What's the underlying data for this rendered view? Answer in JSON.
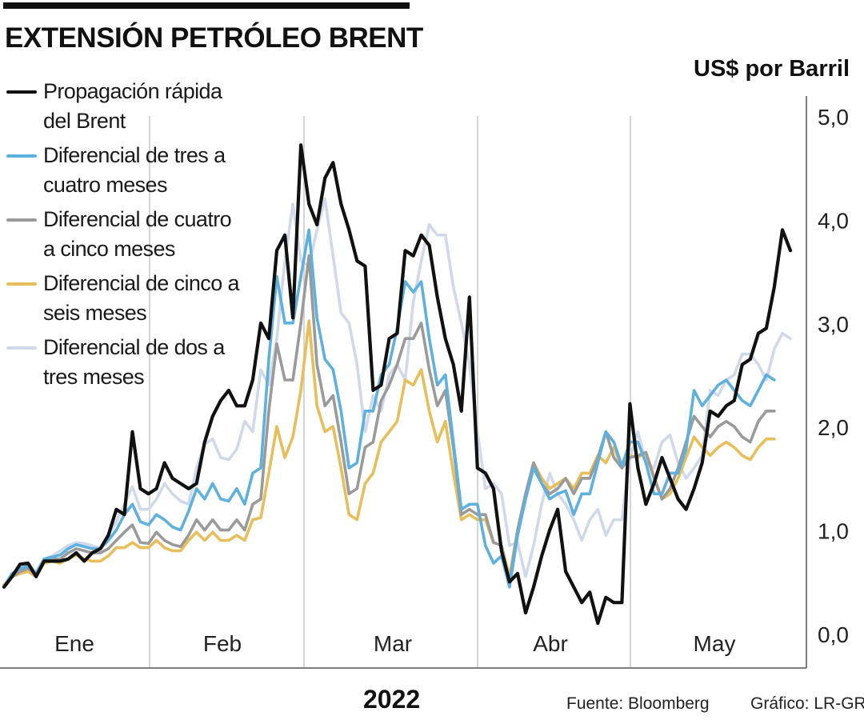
{
  "title": "EXTENSIÓN PETRÓLEO BRENT",
  "unit_label": "US$ por Barril",
  "year_label": "2022",
  "source": "Fuente: Bloomberg",
  "credit": "Gráfico: LR-GR",
  "chart_data": {
    "type": "line",
    "y_axis_side": "right",
    "ylim": [
      0,
      5
    ],
    "y_ticks": [
      "0,0",
      "1,0",
      "2,0",
      "3,0",
      "4,0",
      "5,0"
    ],
    "month_labels": [
      "Ene",
      "Feb",
      "Mar",
      "Abr",
      "May"
    ],
    "month_dividers": [
      "Feb",
      "Mar",
      "Abr",
      "May"
    ],
    "grid": "vertical month separators",
    "legend_position": "top-left",
    "series": [
      {
        "name": "Diferencial de dos a\ntres meses",
        "color": "#d0d9ea",
        "values": [
          0.47,
          0.58,
          0.63,
          0.67,
          0.6,
          0.72,
          0.75,
          0.8,
          0.85,
          0.88,
          0.87,
          0.85,
          0.82,
          0.95,
          1.08,
          1.25,
          1.42,
          1.2,
          1.2,
          1.3,
          1.45,
          1.35,
          1.28,
          1.25,
          1.6,
          1.83,
          1.88,
          1.7,
          1.68,
          1.78,
          2.05,
          1.95,
          2.55,
          2.4,
          2.85,
          3.6,
          4.15,
          3.6,
          3.55,
          3.9,
          4.2,
          3.65,
          3.1,
          3.0,
          2.6,
          1.95,
          2.3,
          2.15,
          2.5,
          2.6,
          2.45,
          3.2,
          3.6,
          3.95,
          3.85,
          3.85,
          3.35,
          3.0,
          2.6,
          1.95,
          1.4,
          1.45,
          1.35,
          0.85,
          0.88,
          0.55,
          0.85,
          1.25,
          1.55,
          1.35,
          1.25,
          1.1,
          0.9,
          1.1,
          1.2,
          0.95,
          1.1,
          1.1,
          1.7,
          1.95,
          1.65,
          1.6,
          1.85,
          1.92,
          1.65,
          1.5,
          1.6,
          1.72,
          2.35,
          2.3,
          2.45,
          2.5,
          2.7,
          2.7,
          2.6,
          2.45,
          2.75,
          2.9,
          2.85
        ]
      },
      {
        "name": "Diferencial de cinco a\nseis meses",
        "color": "#e7be5a",
        "values": [
          0.47,
          0.55,
          0.58,
          0.6,
          0.55,
          0.68,
          0.7,
          0.68,
          0.72,
          0.76,
          0.72,
          0.7,
          0.7,
          0.75,
          0.83,
          0.83,
          0.88,
          0.83,
          0.83,
          0.9,
          0.83,
          0.8,
          0.8,
          0.9,
          0.98,
          0.9,
          0.98,
          0.9,
          0.9,
          0.95,
          0.9,
          1.1,
          1.12,
          1.55,
          2.0,
          1.7,
          1.9,
          2.35,
          3.02,
          2.2,
          1.95,
          2.0,
          1.6,
          1.15,
          1.1,
          1.45,
          1.55,
          1.85,
          1.95,
          2.05,
          2.45,
          2.4,
          2.55,
          2.15,
          1.85,
          2.05,
          1.55,
          1.1,
          1.15,
          1.1,
          1.1,
          0.88,
          0.85,
          0.55,
          1.0,
          1.35,
          1.65,
          1.5,
          1.4,
          1.45,
          1.5,
          1.4,
          1.55,
          1.55,
          1.72,
          1.65,
          1.8,
          1.6,
          1.72,
          1.7,
          1.75,
          1.52,
          1.3,
          1.35,
          1.5,
          1.7,
          1.9,
          1.8,
          1.72,
          1.8,
          1.85,
          1.8,
          1.72,
          1.68,
          1.8,
          1.88,
          1.88
        ]
      },
      {
        "name": "Diferencial de cuatro\na cinco meses",
        "color": "#9a9a9a",
        "values": [
          0.45,
          0.55,
          0.6,
          0.63,
          0.57,
          0.7,
          0.72,
          0.72,
          0.78,
          0.82,
          0.8,
          0.78,
          0.78,
          0.82,
          0.9,
          0.98,
          1.05,
          0.88,
          0.87,
          0.98,
          0.9,
          0.86,
          0.84,
          0.95,
          1.1,
          1.0,
          1.1,
          1.0,
          1.0,
          1.1,
          1.0,
          1.25,
          1.3,
          2.15,
          2.8,
          2.45,
          2.45,
          3.0,
          3.65,
          2.6,
          2.2,
          2.3,
          1.85,
          1.35,
          1.4,
          1.8,
          1.85,
          2.25,
          2.4,
          2.6,
          2.85,
          2.85,
          3.0,
          2.55,
          2.2,
          2.35,
          1.8,
          1.15,
          1.2,
          1.15,
          1.15,
          0.88,
          0.85,
          0.5,
          1.0,
          1.35,
          1.65,
          1.45,
          1.35,
          1.4,
          1.5,
          1.35,
          1.5,
          1.5,
          1.7,
          1.95,
          1.7,
          1.6,
          1.7,
          1.72,
          1.75,
          1.5,
          1.3,
          1.4,
          1.6,
          1.85,
          2.1,
          2.0,
          1.9,
          2.0,
          2.05,
          2.0,
          1.9,
          1.85,
          2.05,
          2.15,
          2.15
        ]
      },
      {
        "name": "Diferencial de tres a\ncuatro meses",
        "color": "#5eb0de",
        "values": [
          0.45,
          0.58,
          0.63,
          0.65,
          0.58,
          0.72,
          0.74,
          0.76,
          0.82,
          0.86,
          0.84,
          0.82,
          0.82,
          0.9,
          1.0,
          1.15,
          1.25,
          1.08,
          1.05,
          1.15,
          1.1,
          1.03,
          1.0,
          1.18,
          1.4,
          1.3,
          1.45,
          1.3,
          1.28,
          1.4,
          1.25,
          1.55,
          1.6,
          2.65,
          3.45,
          3.0,
          3.0,
          3.45,
          3.9,
          3.05,
          2.65,
          2.55,
          2.15,
          1.6,
          1.65,
          2.15,
          2.15,
          2.5,
          2.6,
          2.95,
          3.4,
          3.3,
          3.4,
          2.85,
          2.4,
          2.5,
          1.85,
          1.2,
          1.25,
          1.25,
          0.85,
          0.68,
          0.75,
          0.45,
          0.95,
          1.3,
          1.6,
          1.45,
          1.3,
          1.35,
          1.38,
          1.15,
          1.35,
          1.35,
          1.65,
          1.95,
          1.85,
          1.62,
          1.85,
          1.85,
          1.65,
          1.35,
          1.35,
          1.55,
          1.55,
          1.78,
          2.35,
          2.2,
          2.3,
          2.4,
          2.45,
          2.35,
          2.25,
          2.2,
          2.35,
          2.5,
          2.45
        ]
      },
      {
        "name": "Propagación rápida\ndel Brent",
        "color": "#111111",
        "values": [
          0.45,
          0.55,
          0.67,
          0.68,
          0.55,
          0.7,
          0.7,
          0.7,
          0.72,
          0.78,
          0.7,
          0.78,
          0.82,
          0.95,
          1.2,
          1.15,
          1.95,
          1.4,
          1.35,
          1.4,
          1.65,
          1.5,
          1.45,
          1.4,
          1.45,
          1.85,
          2.1,
          2.25,
          2.35,
          2.2,
          2.2,
          2.45,
          3.0,
          2.85,
          3.7,
          3.85,
          3.05,
          4.72,
          4.15,
          3.95,
          4.4,
          4.55,
          4.15,
          3.9,
          3.6,
          3.55,
          2.35,
          2.4,
          2.85,
          2.9,
          3.7,
          3.65,
          3.85,
          3.75,
          3.25,
          2.85,
          2.6,
          2.15,
          3.25,
          1.6,
          1.55,
          1.4,
          0.8,
          0.5,
          0.58,
          0.2,
          0.45,
          0.75,
          1.0,
          1.2,
          0.6,
          0.45,
          0.3,
          0.4,
          0.1,
          0.35,
          0.3,
          0.3,
          2.22,
          1.6,
          1.25,
          1.45,
          1.7,
          1.5,
          1.3,
          1.2,
          1.4,
          1.65,
          2.15,
          2.1,
          2.2,
          2.25,
          2.6,
          2.65,
          2.9,
          2.95,
          3.35,
          3.9,
          3.7
        ]
      }
    ]
  }
}
